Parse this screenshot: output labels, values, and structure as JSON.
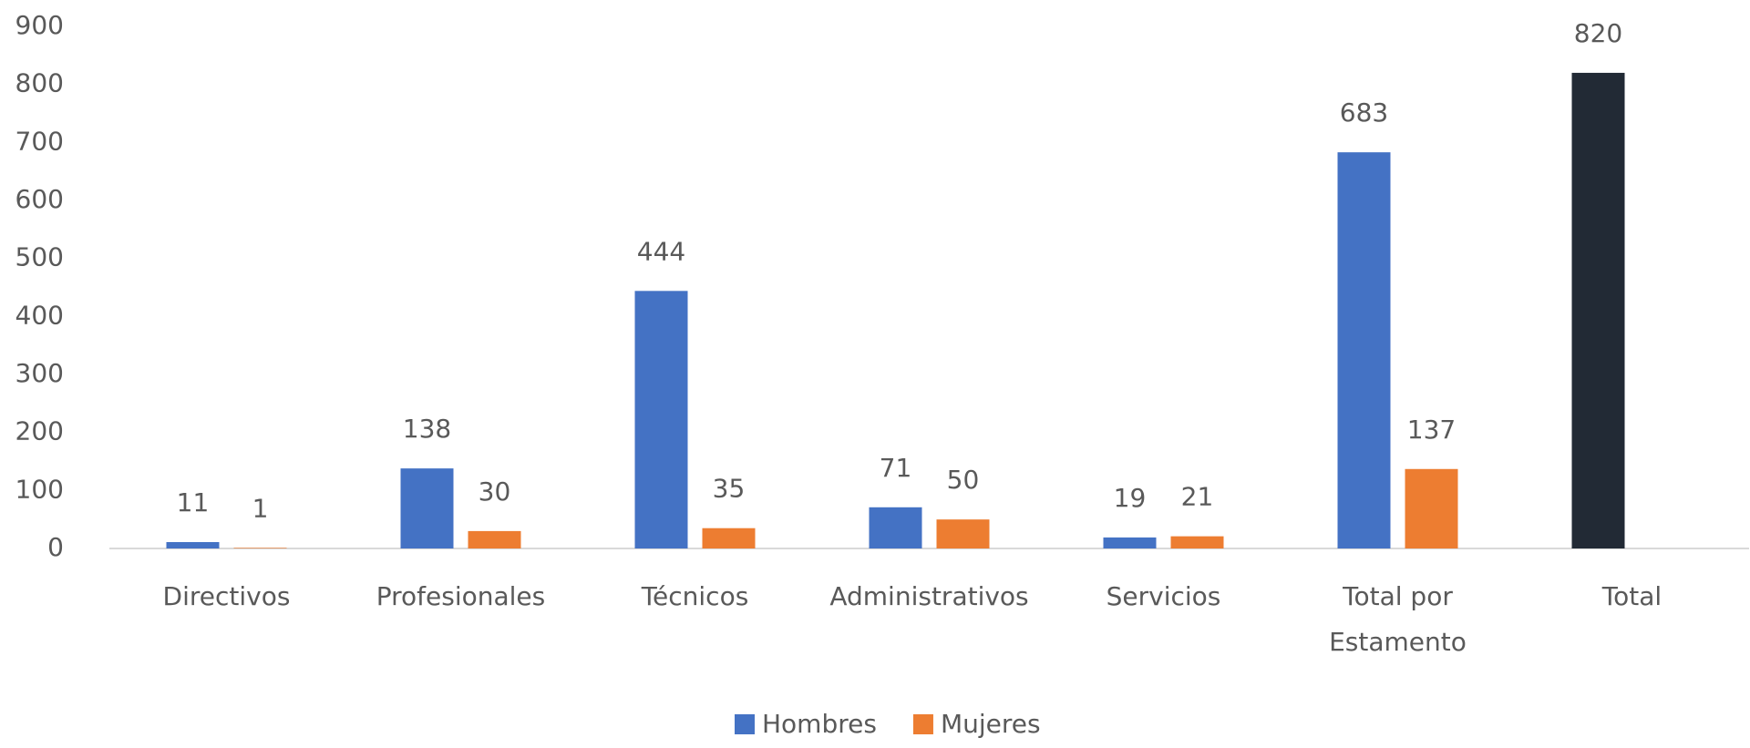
{
  "chart_data": {
    "type": "bar",
    "categories": [
      "Directivos",
      "Profesionales",
      "Técnicos",
      "Administrativos",
      "Servicios",
      "Total por Estamento",
      "Total"
    ],
    "series": [
      {
        "name": "Hombres",
        "color": "#4472c4",
        "colors": [
          "#4472c4",
          "#4472c4",
          "#4472c4",
          "#4472c4",
          "#4472c4",
          "#4472c4",
          "#222a35"
        ],
        "values": [
          11,
          138,
          444,
          71,
          19,
          683,
          820
        ]
      },
      {
        "name": "Mujeres",
        "color": "#ed7d31",
        "values": [
          1,
          30,
          35,
          50,
          21,
          137,
          null
        ]
      }
    ],
    "ylim": [
      0,
      900
    ],
    "yticks": [
      0,
      100,
      200,
      300,
      400,
      500,
      600,
      700,
      800,
      900
    ],
    "grid": false,
    "legend": "bottom"
  }
}
